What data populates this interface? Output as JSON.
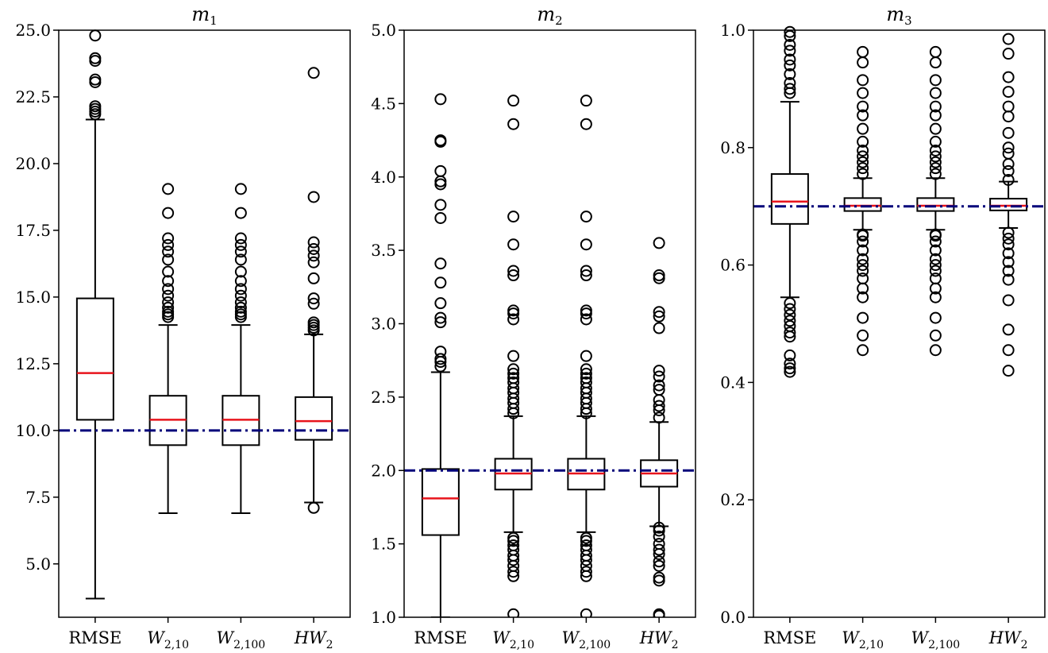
{
  "chart_data": [
    {
      "type": "box",
      "title": "m",
      "title_sub": "1",
      "ylim": [
        3.0,
        25.0
      ],
      "yticks": [
        "5.0",
        "7.5",
        "10.0",
        "12.5",
        "15.0",
        "17.5",
        "20.0",
        "22.5",
        "25.0"
      ],
      "reference_line": 10.0,
      "categories": [
        {
          "base": "RMSE",
          "sub": "",
          "italic": false
        },
        {
          "base": "W",
          "sub": "2,10",
          "italic": true
        },
        {
          "base": "W",
          "sub": "2,100",
          "italic": true
        },
        {
          "base": "HW",
          "sub": "2",
          "italic": true
        }
      ],
      "boxes": [
        {
          "q1": 10.4,
          "median": 12.15,
          "q3": 14.95,
          "whislo": 3.7,
          "whishi": 21.65,
          "fliers": [
            21.85,
            21.95,
            22.05,
            22.15,
            23.05,
            23.15,
            23.85,
            23.95,
            24.8
          ]
        },
        {
          "q1": 9.45,
          "median": 10.4,
          "q3": 11.3,
          "whislo": 6.9,
          "whishi": 13.95,
          "fliers": [
            14.25,
            14.35,
            14.45,
            14.6,
            14.8,
            15.05,
            15.3,
            15.6,
            15.95,
            16.4,
            16.7,
            16.95,
            17.2,
            18.15,
            19.05
          ]
        },
        {
          "q1": 9.45,
          "median": 10.4,
          "q3": 11.3,
          "whislo": 6.9,
          "whishi": 13.95,
          "fliers": [
            14.25,
            14.35,
            14.45,
            14.6,
            14.8,
            15.05,
            15.3,
            15.6,
            15.95,
            16.4,
            16.7,
            16.95,
            17.2,
            18.15,
            19.05
          ]
        },
        {
          "q1": 9.65,
          "median": 10.35,
          "q3": 11.25,
          "whislo": 7.3,
          "whishi": 13.6,
          "fliers": [
            7.1,
            13.75,
            13.85,
            13.95,
            14.05,
            14.75,
            14.95,
            15.7,
            16.3,
            16.55,
            16.8,
            17.05,
            18.75,
            23.4
          ]
        }
      ]
    },
    {
      "type": "box",
      "title": "m",
      "title_sub": "2",
      "ylim": [
        1.0,
        5.0
      ],
      "yticks": [
        "1.0",
        "1.5",
        "2.0",
        "2.5",
        "3.0",
        "3.5",
        "4.0",
        "4.5",
        "5.0"
      ],
      "reference_line": 2.0,
      "categories": [
        {
          "base": "RMSE",
          "sub": "",
          "italic": false
        },
        {
          "base": "W",
          "sub": "2,10",
          "italic": true
        },
        {
          "base": "W",
          "sub": "2,100",
          "italic": true
        },
        {
          "base": "HW",
          "sub": "2",
          "italic": true
        }
      ],
      "boxes": [
        {
          "q1": 1.56,
          "median": 1.81,
          "q3": 2.01,
          "whislo": 1.0,
          "whishi": 2.67,
          "fliers": [
            2.71,
            2.74,
            2.76,
            2.81,
            3.01,
            3.04,
            3.14,
            3.28,
            3.41,
            3.72,
            3.81,
            3.95,
            3.97,
            4.04,
            4.24,
            4.25,
            4.53
          ]
        },
        {
          "q1": 1.87,
          "median": 1.98,
          "q3": 2.08,
          "whislo": 1.58,
          "whishi": 2.37,
          "fliers": [
            1.02,
            1.28,
            1.31,
            1.35,
            1.39,
            1.42,
            1.46,
            1.49,
            1.52,
            1.54,
            2.39,
            2.42,
            2.46,
            2.49,
            2.53,
            2.56,
            2.6,
            2.63,
            2.66,
            2.69,
            2.78,
            3.03,
            3.07,
            3.09,
            3.33,
            3.36,
            3.54,
            3.73,
            4.36,
            4.52
          ]
        },
        {
          "q1": 1.87,
          "median": 1.98,
          "q3": 2.08,
          "whislo": 1.58,
          "whishi": 2.37,
          "fliers": [
            1.02,
            1.28,
            1.31,
            1.35,
            1.39,
            1.42,
            1.46,
            1.49,
            1.52,
            1.54,
            2.39,
            2.42,
            2.46,
            2.49,
            2.53,
            2.56,
            2.6,
            2.63,
            2.66,
            2.69,
            2.78,
            3.03,
            3.07,
            3.09,
            3.33,
            3.36,
            3.54,
            3.73,
            4.36,
            4.52
          ]
        },
        {
          "q1": 1.89,
          "median": 1.98,
          "q3": 2.07,
          "whislo": 1.62,
          "whishi": 2.33,
          "fliers": [
            1.01,
            1.02,
            1.25,
            1.27,
            1.35,
            1.38,
            1.43,
            1.46,
            1.5,
            1.55,
            1.59,
            1.61,
            2.36,
            2.41,
            2.44,
            2.48,
            2.55,
            2.58,
            2.64,
            2.68,
            2.97,
            3.05,
            3.08,
            3.31,
            3.33,
            3.55
          ]
        }
      ]
    },
    {
      "type": "box",
      "title": "m",
      "title_sub": "3",
      "ylim": [
        0.0,
        1.0
      ],
      "yticks": [
        "0.0",
        "0.2",
        "0.4",
        "0.6",
        "0.8",
        "1.0"
      ],
      "reference_line": 0.7,
      "categories": [
        {
          "base": "RMSE",
          "sub": "",
          "italic": false
        },
        {
          "base": "W",
          "sub": "2,10",
          "italic": true
        },
        {
          "base": "W",
          "sub": "2,100",
          "italic": true
        },
        {
          "base": "HW",
          "sub": "2",
          "italic": true
        }
      ],
      "boxes": [
        {
          "q1": 0.67,
          "median": 0.708,
          "q3": 0.755,
          "whislo": 0.545,
          "whishi": 0.878,
          "fliers": [
            0.418,
            0.424,
            0.432,
            0.446,
            0.478,
            0.485,
            0.496,
            0.505,
            0.515,
            0.525,
            0.535,
            0.893,
            0.9,
            0.91,
            0.925,
            0.94,
            0.95,
            0.965,
            0.975,
            0.99,
            0.997
          ]
        },
        {
          "q1": 0.692,
          "median": 0.701,
          "q3": 0.714,
          "whislo": 0.66,
          "whishi": 0.748,
          "fliers": [
            0.455,
            0.48,
            0.51,
            0.545,
            0.56,
            0.577,
            0.59,
            0.6,
            0.61,
            0.625,
            0.64,
            0.65,
            0.652,
            0.755,
            0.765,
            0.775,
            0.785,
            0.795,
            0.81,
            0.832,
            0.855,
            0.87,
            0.893,
            0.915,
            0.945,
            0.963
          ]
        },
        {
          "q1": 0.692,
          "median": 0.701,
          "q3": 0.714,
          "whislo": 0.66,
          "whishi": 0.748,
          "fliers": [
            0.455,
            0.48,
            0.51,
            0.545,
            0.56,
            0.577,
            0.59,
            0.6,
            0.61,
            0.625,
            0.64,
            0.65,
            0.652,
            0.755,
            0.765,
            0.775,
            0.785,
            0.795,
            0.81,
            0.832,
            0.855,
            0.87,
            0.893,
            0.915,
            0.945,
            0.963
          ]
        },
        {
          "q1": 0.693,
          "median": 0.701,
          "q3": 0.713,
          "whislo": 0.663,
          "whishi": 0.742,
          "fliers": [
            0.42,
            0.455,
            0.49,
            0.54,
            0.575,
            0.59,
            0.605,
            0.62,
            0.635,
            0.645,
            0.655,
            0.745,
            0.76,
            0.772,
            0.79,
            0.8,
            0.825,
            0.853,
            0.87,
            0.895,
            0.92,
            0.96,
            0.985
          ]
        }
      ]
    }
  ],
  "colors": {
    "median": "#e8141c",
    "reference_line": "#00007a",
    "box": "#000000",
    "flier": "#000000"
  }
}
